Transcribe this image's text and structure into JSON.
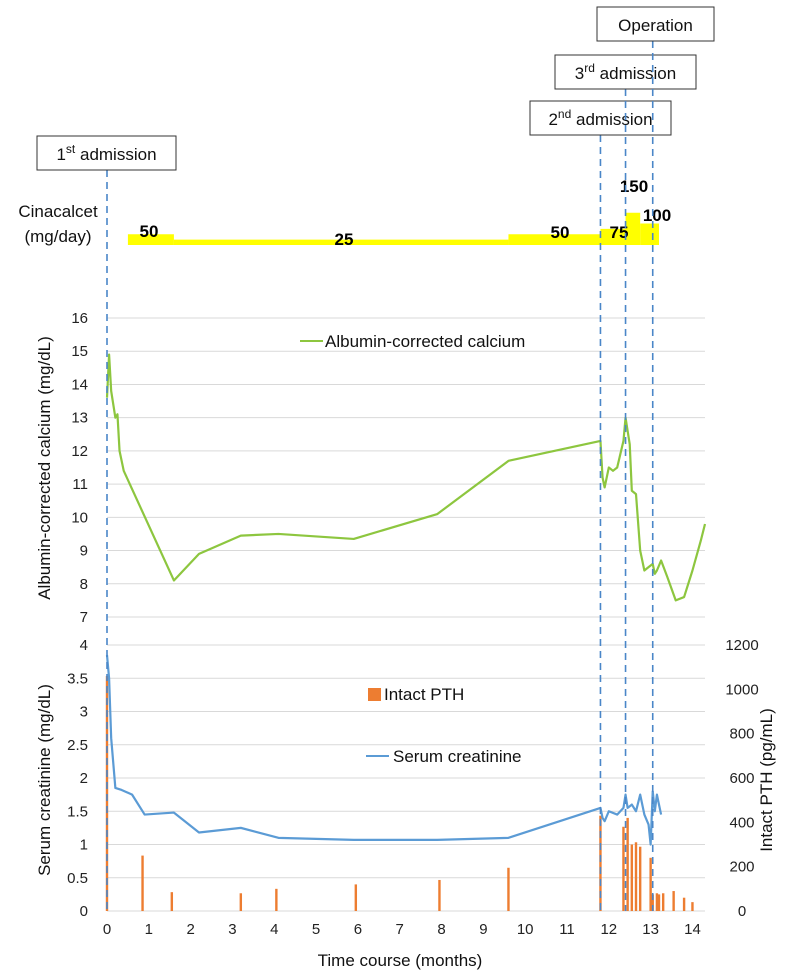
{
  "chart_data": [
    {
      "type": "area",
      "title": "Cinacalcet dosing",
      "ylabel": [
        "Cinacalcet",
        "(mg/day)"
      ],
      "x_unit": "months",
      "segments": [
        {
          "start": 0.5,
          "end": 1.6,
          "dose": 50,
          "label": "50"
        },
        {
          "start": 1.6,
          "end": 9.6,
          "dose": 25,
          "label": "25"
        },
        {
          "start": 9.6,
          "end": 11.8,
          "dose": 50,
          "label": "50"
        },
        {
          "start": 11.8,
          "end": 12.4,
          "dose": 75,
          "label": "75"
        },
        {
          "start": 12.4,
          "end": 12.75,
          "dose": 150,
          "label": "150"
        },
        {
          "start": 12.75,
          "end": 13.2,
          "dose": 100,
          "label": "100"
        }
      ]
    },
    {
      "type": "line",
      "ylabel": "Albumin-corrected calcium (mg/dL)",
      "ylim": [
        7,
        16
      ],
      "yticks": [
        "7",
        "8",
        "9",
        "10",
        "11",
        "12",
        "13",
        "14",
        "15",
        "16"
      ],
      "grid": true,
      "legend_placement": "top-center",
      "series": [
        {
          "name": "Albumin-corrected calcium",
          "color": "#8dc63f",
          "x": [
            0,
            0.05,
            0.1,
            0.2,
            0.25,
            0.3,
            0.4,
            1.6,
            2.2,
            3.2,
            4.1,
            5.9,
            7.9,
            9.6,
            11.8,
            11.85,
            11.9,
            12.0,
            12.1,
            12.2,
            12.35,
            12.4,
            12.5,
            12.55,
            12.65,
            12.75,
            12.85,
            12.95,
            13.05,
            13.1,
            13.15,
            13.25,
            13.4,
            13.6,
            13.8,
            14.0,
            14.2,
            14.3
          ],
          "y": [
            13.6,
            14.9,
            13.8,
            13.0,
            13.1,
            12.0,
            11.4,
            8.1,
            8.9,
            9.45,
            9.5,
            9.35,
            10.1,
            11.7,
            12.3,
            11.2,
            10.9,
            11.5,
            11.4,
            11.5,
            12.3,
            13.0,
            12.2,
            10.8,
            10.7,
            9.0,
            8.4,
            8.5,
            8.6,
            8.3,
            8.4,
            8.7,
            8.2,
            7.5,
            7.6,
            8.4,
            9.3,
            9.8
          ]
        }
      ]
    },
    {
      "type": "line",
      "ylabel": "Serum creatinine (mg/dL)",
      "ylabel_right": "Intact PTH (pg/mL)",
      "xlabel": "Time course (months)",
      "xlim": [
        0,
        14.3
      ],
      "ylim": [
        0,
        4
      ],
      "ylim_right": [
        0,
        1200
      ],
      "yticks": [
        "0",
        "0.5",
        "1",
        "1.5",
        "2",
        "2.5",
        "3",
        "3.5",
        "4"
      ],
      "yticks_right": [
        "0",
        "200",
        "400",
        "600",
        "800",
        "1000",
        "1200"
      ],
      "xticks": [
        "0",
        "1",
        "2",
        "3",
        "4",
        "5",
        "6",
        "7",
        "8",
        "9",
        "10",
        "11",
        "12",
        "13",
        "14"
      ],
      "grid": true,
      "legend_placement": "upper-center",
      "series": [
        {
          "name": "Serum creatinine",
          "color": "#5b9bd5",
          "x": [
            0,
            0.05,
            0.1,
            0.2,
            0.35,
            0.6,
            0.9,
            1.6,
            2.2,
            3.2,
            4.1,
            5.9,
            7.9,
            9.6,
            11.8,
            11.85,
            11.9,
            12.0,
            12.2,
            12.35,
            12.4,
            12.45,
            12.55,
            12.65,
            12.75,
            12.85,
            12.95,
            13.0,
            13.05,
            13.1,
            13.15,
            13.2,
            13.25
          ],
          "y": [
            3.85,
            3.5,
            2.6,
            1.85,
            1.82,
            1.75,
            1.45,
            1.48,
            1.18,
            1.25,
            1.1,
            1.07,
            1.07,
            1.1,
            1.55,
            1.4,
            1.35,
            1.5,
            1.45,
            1.55,
            1.75,
            1.55,
            1.6,
            1.5,
            1.75,
            1.45,
            1.3,
            1.0,
            1.8,
            1.5,
            1.75,
            1.6,
            1.45
          ]
        },
        {
          "name": "Intact PTH",
          "axis": "right",
          "render": "bar",
          "color": "#ed7d31",
          "x": [
            0,
            0.85,
            1.55,
            3.2,
            4.05,
            5.95,
            7.95,
            9.6,
            11.8,
            12.35,
            12.45,
            12.55,
            12.65,
            12.75,
            13.0,
            13.05,
            13.15,
            13.2,
            13.3,
            13.55,
            13.8,
            14.0
          ],
          "y": [
            1060,
            250,
            85,
            80,
            100,
            120,
            140,
            195,
            430,
            380,
            420,
            300,
            310,
            290,
            240,
            75,
            80,
            75,
            80,
            90,
            60,
            40
          ]
        }
      ]
    }
  ],
  "events": [
    {
      "x": 0,
      "label_html": "1<sup>st</sup> admission",
      "label": "1st admission"
    },
    {
      "x": 11.8,
      "label": "2nd admission"
    },
    {
      "x": 12.4,
      "label": "3rd admission"
    },
    {
      "x": 13.05,
      "label": "Operation"
    }
  ],
  "colors": {
    "cinacalcet": "#ffff00",
    "event_line": "#4a86c8",
    "calcium": "#8dc63f",
    "creatinine": "#5b9bd5",
    "pth": "#ed7d31"
  }
}
